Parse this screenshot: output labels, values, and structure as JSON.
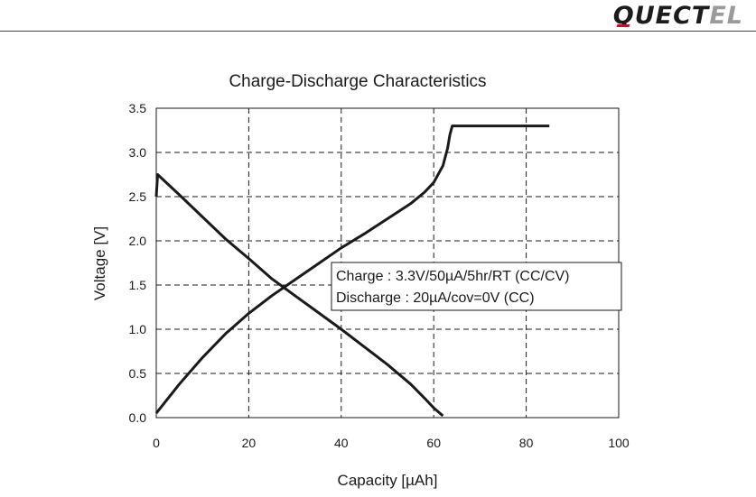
{
  "header": {
    "logo_text_main": "QUECT",
    "logo_text_tail": "EL"
  },
  "chart_data": {
    "type": "line",
    "title": "Charge-Discharge Characteristics",
    "xlabel": "Capacity [µAh]",
    "ylabel": "Voltage [V]",
    "xlim": [
      0,
      100
    ],
    "ylim": [
      0,
      3.5
    ],
    "xticks": [
      "0",
      "20",
      "40",
      "60",
      "80",
      "100"
    ],
    "yticks": [
      "0.0",
      "0.5",
      "1.0",
      "1.5",
      "2.0",
      "2.5",
      "3.0",
      "3.5"
    ],
    "grid": true,
    "legend_position": "center-right",
    "legend": [
      "Charge : 3.3V/50µA/5hr/RT (CC/CV)",
      "Discharge : 20µA/cov=0V (CC)"
    ],
    "series": [
      {
        "x": [
          0,
          5,
          10,
          15,
          20,
          25,
          30,
          35,
          40,
          45,
          50,
          55,
          58,
          60,
          62,
          63,
          63.5,
          64,
          70,
          80,
          85
        ],
        "y": [
          0.05,
          0.38,
          0.68,
          0.95,
          1.18,
          1.38,
          1.56,
          1.74,
          1.92,
          2.08,
          2.25,
          2.42,
          2.55,
          2.66,
          2.85,
          3.05,
          3.2,
          3.3,
          3.3,
          3.3,
          3.3
        ],
        "color": "#1a1a1a"
      },
      {
        "x": [
          0,
          0.3,
          5,
          10,
          15,
          20,
          25,
          30,
          35,
          40,
          45,
          50,
          55,
          58,
          60,
          62
        ],
        "y": [
          2.5,
          2.75,
          2.52,
          2.27,
          2.02,
          1.8,
          1.57,
          1.38,
          1.19,
          1.0,
          0.8,
          0.6,
          0.38,
          0.22,
          0.11,
          0.02
        ],
        "color": "#1a1a1a"
      }
    ]
  }
}
